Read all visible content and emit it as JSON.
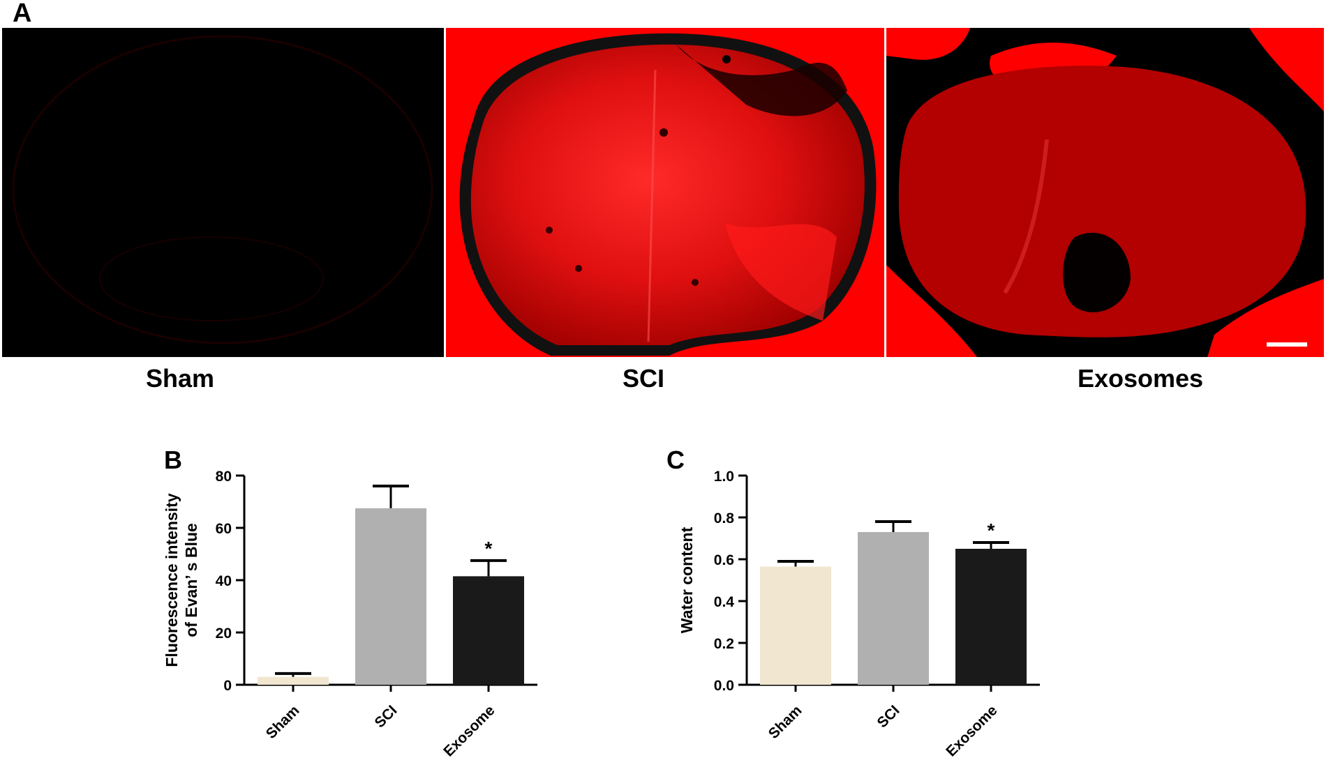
{
  "panel_a": {
    "letter": "A",
    "images": [
      {
        "label": "Sham",
        "signal": "none"
      },
      {
        "label": "SCI",
        "signal": "strong"
      },
      {
        "label": "Exosomes",
        "signal": "moderate"
      }
    ],
    "stain_color": "#ff0000"
  },
  "chart_data": [
    {
      "panel": "B",
      "type": "bar",
      "categories": [
        "Sham",
        "SCI",
        "Exosome"
      ],
      "values": [
        3,
        67.5,
        41.5
      ],
      "error_upper": [
        4.3,
        76,
        47.5
      ],
      "significance": [
        "",
        "",
        "*"
      ],
      "ylabel_line1": "Fluorescence intensity",
      "ylabel_line2": "of Evan’ s Blue",
      "ylim": [
        0,
        80
      ],
      "yticks": [
        "0",
        "20",
        "40",
        "60",
        "80"
      ],
      "bar_colors": [
        "#f1e6cf",
        "#b0b0b0",
        "#1a1a1a"
      ]
    },
    {
      "panel": "C",
      "type": "bar",
      "categories": [
        "Sham",
        "SCI",
        "Exosome"
      ],
      "values": [
        0.565,
        0.73,
        0.65
      ],
      "error_upper": [
        0.59,
        0.78,
        0.68
      ],
      "significance": [
        "",
        "",
        "*"
      ],
      "ylabel_line1": "Water content",
      "ylabel_line2": "",
      "ylim": [
        0,
        1.0
      ],
      "yticks": [
        "0.0",
        "0.2",
        "0.4",
        "0.6",
        "0.8",
        "1.0"
      ],
      "bar_colors": [
        "#f1e6cf",
        "#b0b0b0",
        "#1a1a1a"
      ]
    }
  ]
}
